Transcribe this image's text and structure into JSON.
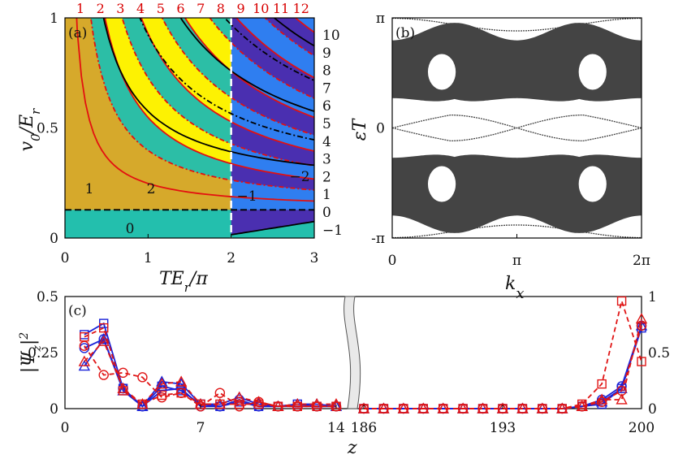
{
  "chart_data": [
    {
      "type": "heatmap",
      "panel_label": "(a)",
      "xlabel": "TE_r/π",
      "ylabel": "v_0/E_r",
      "xlabel_parts": {
        "main": "TE",
        "sub": "r",
        "tail": "/π"
      },
      "ylabel_parts": {
        "main": "v",
        "sub0": "0",
        "mid": "/E",
        "sub": "r"
      },
      "xlim": [
        0,
        3
      ],
      "ylim": [
        0,
        1
      ],
      "xticks": [
        "0",
        "1",
        "2",
        "3"
      ],
      "yticks": [
        "0",
        "0.5",
        "1"
      ],
      "top_labels": [
        "1",
        "2",
        "3",
        "4",
        "5",
        "6",
        "7",
        "8",
        "9",
        "10",
        "11",
        "12"
      ],
      "right_labels": [
        "10",
        "9",
        "8",
        "7",
        "6",
        "5",
        "4",
        "3",
        "2",
        "1",
        "0",
        "−1"
      ],
      "region_labels": [
        "1",
        "2",
        "0",
        "−1",
        "−2"
      ],
      "colors": {
        "gold": "#d6a92b",
        "teal": "#23bfad",
        "yellow": "#fff600",
        "blue": "#2f7ef0",
        "indigo": "#4a2fb0",
        "red": "#e31010"
      }
    },
    {
      "type": "scatter",
      "panel_label": "(b)",
      "xlabel": "k_x",
      "ylabel": "εT",
      "xlabel_parts": {
        "main": "k",
        "sub": "x"
      },
      "ylabel_text": "εT",
      "xlim": [
        0,
        6.2832
      ],
      "ylim": [
        -3.1416,
        3.1416
      ],
      "xticks": [
        "0",
        "π",
        "2π"
      ],
      "yticks": [
        "π",
        "0",
        "-π"
      ],
      "band_color": "#444444"
    },
    {
      "type": "line",
      "panel_label": "(c)",
      "xlabel": "z",
      "ylabel": "|Ψ_z|^2",
      "ylabel_parts": {
        "pre": "|Ψ",
        "sub": "z",
        "post": "|",
        "sup": "2"
      },
      "ylim_left": [
        0,
        0.5
      ],
      "ylim_right": [
        0,
        1
      ],
      "yticks_left": [
        "0",
        "0.25",
        "0.5"
      ],
      "yticks_right": [
        "0",
        "0.5",
        "1"
      ],
      "xticks": [
        "0",
        "7",
        "14",
        "186",
        "193",
        "200"
      ],
      "x_left": [
        1,
        2,
        3,
        4,
        5,
        6,
        7,
        8,
        9,
        10,
        11,
        12,
        13,
        14
      ],
      "x_right": [
        186,
        187,
        188,
        189,
        190,
        191,
        192,
        193,
        194,
        195,
        196,
        197,
        198,
        199,
        200
      ],
      "series": [
        {
          "name": "blue squares",
          "color": "#1a22d8",
          "marker": "square",
          "dash": false,
          "left": [
            0.33,
            0.38,
            0.09,
            0.01,
            0.1,
            0.08,
            0.02,
            0.01,
            0.03,
            0.01,
            0.01,
            0.02,
            0.01,
            0.01
          ],
          "right": [
            0,
            0,
            0,
            0,
            0,
            0,
            0,
            0,
            0,
            0,
            0,
            0.01,
            0.02,
            0.09,
            0.36
          ]
        },
        {
          "name": "blue triangles",
          "color": "#1a22d8",
          "marker": "triangle",
          "dash": false,
          "left": [
            0.19,
            0.31,
            0.08,
            0.01,
            0.12,
            0.11,
            0.02,
            0.02,
            0.05,
            0.02,
            0.01,
            0.02,
            0.02,
            0.01
          ],
          "right": [
            0,
            0,
            0,
            0,
            0,
            0,
            0,
            0,
            0,
            0,
            0,
            0.01,
            0.03,
            0.09,
            0.37
          ]
        },
        {
          "name": "blue circles",
          "color": "#1a22d8",
          "marker": "circle",
          "dash": false,
          "left": [
            0.27,
            0.31,
            0.09,
            0.01,
            0.08,
            0.09,
            0.01,
            0.01,
            0.04,
            0.01,
            0.01,
            0.01,
            0.01,
            0.01
          ],
          "right": [
            0,
            0,
            0,
            0,
            0,
            0,
            0,
            0,
            0,
            0,
            0,
            0.01,
            0.04,
            0.1,
            0.37
          ]
        },
        {
          "name": "red circles",
          "color": "#e01515",
          "marker": "circle",
          "dash": true,
          "left": [
            0.28,
            0.15,
            0.16,
            0.14,
            0.05,
            0.07,
            0.01,
            0.07,
            0.01,
            0.03,
            0.01,
            0.01,
            0.01,
            0.01
          ],
          "right": [
            0,
            0,
            0,
            0,
            0,
            0,
            0,
            0,
            0,
            0,
            0,
            0.01,
            0.03,
            0.08,
            0.37
          ]
        },
        {
          "name": "red squares",
          "color": "#e01515",
          "marker": "square",
          "dash": true,
          "left": [
            0.32,
            0.36,
            0.08,
            0.02,
            0.06,
            0.07,
            0.02,
            0.02,
            0.02,
            0.02,
            0.01,
            0.01,
            0.01,
            0.01
          ],
          "right": [
            0,
            0,
            0,
            0,
            0,
            0,
            0,
            0,
            0,
            0,
            0,
            0.02,
            0.11,
            0.48,
            0.21
          ]
        },
        {
          "name": "red triangles",
          "color": "#e01515",
          "marker": "triangle",
          "dash": true,
          "left": [
            0.21,
            0.3,
            0.09,
            0.02,
            0.11,
            0.12,
            0.02,
            0.02,
            0.05,
            0.03,
            0.01,
            0.02,
            0.02,
            0.02
          ],
          "right": [
            0,
            0,
            0,
            0,
            0,
            0,
            0,
            0,
            0,
            0,
            0,
            0.01,
            0.04,
            0.04,
            0.4
          ]
        }
      ]
    }
  ]
}
